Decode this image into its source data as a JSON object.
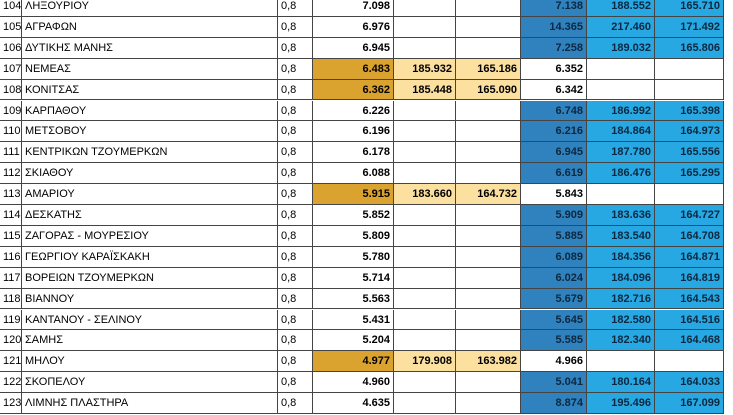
{
  "table": {
    "rows": [
      {
        "no": "104",
        "name": "ΛΗΞΟΥΡΙΟΥ",
        "factor": "0,8",
        "value": "7.098",
        "compare": [
          "7.138",
          "188.552",
          "165.710"
        ]
      },
      {
        "no": "105",
        "name": "ΑΓΡΑΦΩΝ",
        "factor": "0,8",
        "value": "6.976",
        "compare": [
          "14.365",
          "217.460",
          "171.492"
        ]
      },
      {
        "no": "106",
        "name": "ΔΥΤΙΚΗΣ ΜΑΝΗΣ",
        "factor": "0,8",
        "value": "6.945",
        "compare": [
          "7.258",
          "189.032",
          "165.806"
        ]
      },
      {
        "no": "107",
        "name": "ΝΕΜΕΑΣ",
        "factor": "0,8",
        "value": "6.483",
        "extra": [
          "185.932",
          "165.186"
        ],
        "compare": [
          "6.352"
        ]
      },
      {
        "no": "108",
        "name": "ΚΟΝΙΤΣΑΣ",
        "factor": "0,8",
        "value": "6.362",
        "extra": [
          "185.448",
          "165.090"
        ],
        "compare": [
          "6.342"
        ]
      },
      {
        "no": "109",
        "name": "ΚΑΡΠΑΘΟΥ",
        "factor": "0,8",
        "value": "6.226",
        "compare": [
          "6.748",
          "186.992",
          "165.398"
        ]
      },
      {
        "no": "110",
        "name": "ΜΕΤΣΟΒΟΥ",
        "factor": "0,8",
        "value": "6.196",
        "compare": [
          "6.216",
          "184.864",
          "164.973"
        ]
      },
      {
        "no": "111",
        "name": "ΚΕΝΤΡΙΚΩΝ ΤΖΟΥΜΕΡΚΩΝ",
        "factor": "0,8",
        "value": "6.178",
        "compare": [
          "6.945",
          "187.780",
          "165.556"
        ]
      },
      {
        "no": "112",
        "name": "ΣΚΙΑΘΟΥ",
        "factor": "0,8",
        "value": "6.088",
        "compare": [
          "6.619",
          "186.476",
          "165.295"
        ]
      },
      {
        "no": "113",
        "name": "ΑΜΑΡΙΟΥ",
        "factor": "0,8",
        "value": "5.915",
        "extra": [
          "183.660",
          "164.732"
        ],
        "compare": [
          "5.843"
        ]
      },
      {
        "no": "114",
        "name": "ΔΕΣΚΑΤΗΣ",
        "factor": "0,8",
        "value": "5.852",
        "compare": [
          "5.909",
          "183.636",
          "164.727"
        ]
      },
      {
        "no": "115",
        "name": "ΖΑΓΟΡΑΣ - ΜΟΥΡΕΣΙΟΥ",
        "factor": "0,8",
        "value": "5.809",
        "compare": [
          "5.885",
          "183.540",
          "164.708"
        ]
      },
      {
        "no": "116",
        "name": "ΓΕΩΡΓΙΟΥ ΚΑΡΑΪΣΚΑΚΗ",
        "factor": "0,8",
        "value": "5.780",
        "compare": [
          "6.089",
          "184.356",
          "164.871"
        ]
      },
      {
        "no": "117",
        "name": "ΒΟΡΕΙΩΝ ΤΖΟΥΜΕΡΚΩΝ",
        "factor": "0,8",
        "value": "5.714",
        "compare": [
          "6.024",
          "184.096",
          "164.819"
        ]
      },
      {
        "no": "118",
        "name": "ΒΙΑΝΝΟΥ",
        "factor": "0,8",
        "value": "5.563",
        "compare": [
          "5.679",
          "182.716",
          "164.543"
        ]
      },
      {
        "no": "119",
        "name": "ΚΑΝΤΑΝΟΥ - ΣΕΛΙΝΟΥ",
        "factor": "0,8",
        "value": "5.431",
        "compare": [
          "5.645",
          "182.580",
          "164.516"
        ]
      },
      {
        "no": "120",
        "name": "ΣΑΜΗΣ",
        "factor": "0,8",
        "value": "5.204",
        "compare": [
          "5.585",
          "182.340",
          "164.468"
        ]
      },
      {
        "no": "121",
        "name": "ΜΗΛΟΥ",
        "factor": "0,8",
        "value": "4.977",
        "extra": [
          "179.908",
          "163.982"
        ],
        "compare": [
          "4.966"
        ]
      },
      {
        "no": "122",
        "name": "ΣΚΟΠΕΛΟΥ",
        "factor": "0,8",
        "value": "4.960",
        "compare": [
          "5.041",
          "180.164",
          "164.033"
        ]
      },
      {
        "no": "123",
        "name": "ΛΙΜΝΗΣ ΠΛΑΣΤΗΡΑ",
        "factor": "0,8",
        "value": "4.635",
        "compare": [
          "8.874",
          "195.496",
          "167.099"
        ]
      }
    ]
  }
}
